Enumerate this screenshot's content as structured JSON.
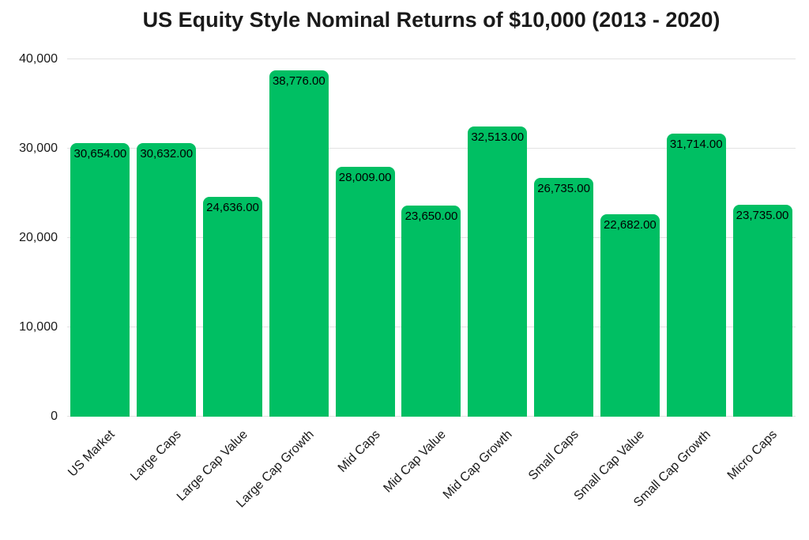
{
  "chart_data": {
    "type": "bar",
    "title": "US Equity Style Nominal Returns of $10,000 (2013 - 2020)",
    "categories": [
      "US Market",
      "Large Caps",
      "Large Cap Value",
      "Large Cap Growth",
      "Mid Caps",
      "Mid Cap Value",
      "Mid Cap Growth",
      "Small Caps",
      "Small Cap Value",
      "Small Cap Growth",
      "Micro Caps"
    ],
    "values": [
      30654,
      30632,
      24636,
      38776,
      28009,
      23650,
      32513,
      26735,
      22682,
      31714,
      23735
    ],
    "bar_labels": [
      "30,654.00",
      "30,632.00",
      "24,636.00",
      "38,776.00",
      "28,009.00",
      "23,650.00",
      "32,513.00",
      "26,735.00",
      "22,682.00",
      "31,714.00",
      "23,735.00"
    ],
    "xlabel": "",
    "ylabel": "",
    "ylim": [
      0,
      40000
    ],
    "yticks": [
      0,
      10000,
      20000,
      30000,
      40000
    ],
    "ytick_labels": [
      "0",
      "10,000",
      "20,000",
      "30,000",
      "40,000"
    ],
    "grid": true,
    "legend": false,
    "colors": {
      "bar": "#00bf63",
      "gridline": "#e2e2e2",
      "text": "#1a1a1a",
      "bar_label_text": "#000000"
    }
  }
}
